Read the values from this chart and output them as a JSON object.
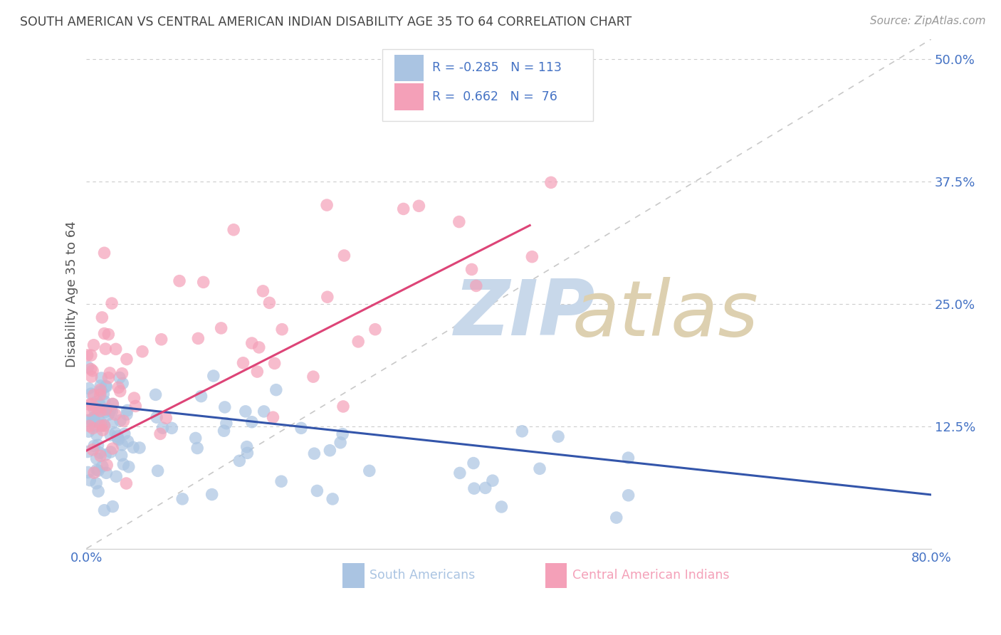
{
  "title": "SOUTH AMERICAN VS CENTRAL AMERICAN INDIAN DISABILITY AGE 35 TO 64 CORRELATION CHART",
  "source": "Source: ZipAtlas.com",
  "ylabel": "Disability Age 35 to 64",
  "xmin": 0.0,
  "xmax": 0.8,
  "ymin": 0.0,
  "ymax": 0.52,
  "yticks": [
    0.125,
    0.25,
    0.375,
    0.5
  ],
  "ytick_labels": [
    "12.5%",
    "25.0%",
    "37.5%",
    "50.0%"
  ],
  "blue_R": -0.285,
  "blue_N": 113,
  "pink_R": 0.662,
  "pink_N": 76,
  "blue_color": "#aac4e2",
  "pink_color": "#f4a0b8",
  "blue_line_color": "#3355aa",
  "pink_line_color": "#dd4477",
  "title_color": "#444444",
  "source_color": "#999999",
  "grid_color": "#cccccc",
  "tick_label_color": "#4472c4",
  "background_color": "#ffffff",
  "legend_color": "#4472c4",
  "blue_trend_x": [
    0.0,
    0.8
  ],
  "blue_trend_y": [
    0.148,
    0.055
  ],
  "pink_trend_x": [
    0.0,
    0.42
  ],
  "pink_trend_y": [
    0.1,
    0.33
  ],
  "diag_line_x": [
    0.0,
    0.8
  ],
  "diag_line_y": [
    0.0,
    0.52
  ]
}
